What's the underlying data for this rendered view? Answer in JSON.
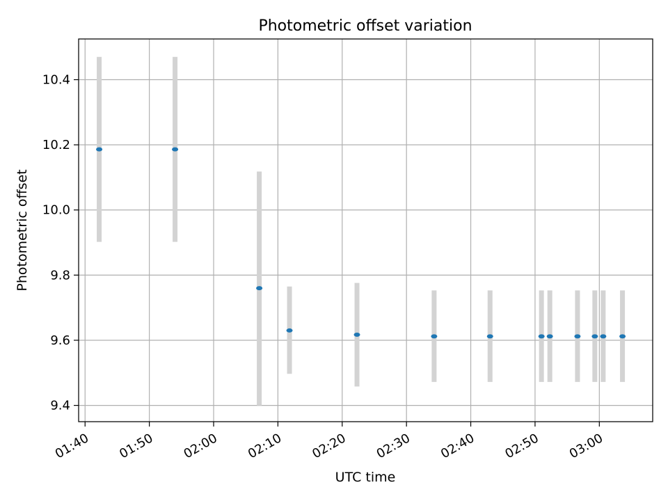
{
  "chart_data": {
    "type": "scatter",
    "title": "Photometric offset variation",
    "xlabel": "UTC time",
    "ylabel": "Photometric offset",
    "xlim": [
      99.0,
      188.3
    ],
    "ylim": [
      9.35,
      10.525
    ],
    "x_ticks": [
      {
        "value": 100,
        "label": "01:40"
      },
      {
        "value": 110,
        "label": "01:50"
      },
      {
        "value": 120,
        "label": "02:00"
      },
      {
        "value": 130,
        "label": "02:10"
      },
      {
        "value": 140,
        "label": "02:20"
      },
      {
        "value": 150,
        "label": "02:30"
      },
      {
        "value": 160,
        "label": "02:40"
      },
      {
        "value": 170,
        "label": "02:50"
      },
      {
        "value": 180,
        "label": "03:00"
      }
    ],
    "y_ticks": [
      {
        "value": 9.4,
        "label": "9.4"
      },
      {
        "value": 9.6,
        "label": "9.6"
      },
      {
        "value": 9.8,
        "label": "9.8"
      },
      {
        "value": 10.0,
        "label": "10.0"
      },
      {
        "value": 10.2,
        "label": "10.2"
      },
      {
        "value": 10.4,
        "label": "10.4"
      }
    ],
    "grid": true,
    "x_unit": "minutes after 00:00 UTC",
    "points": [
      {
        "x": 102.2,
        "y": 10.186,
        "low": 9.902,
        "high": 10.47
      },
      {
        "x": 114.0,
        "y": 10.186,
        "low": 9.902,
        "high": 10.47
      },
      {
        "x": 127.1,
        "y": 9.76,
        "low": 9.4,
        "high": 10.118
      },
      {
        "x": 131.8,
        "y": 9.63,
        "low": 9.497,
        "high": 9.765
      },
      {
        "x": 142.3,
        "y": 9.617,
        "low": 9.458,
        "high": 9.776
      },
      {
        "x": 154.3,
        "y": 9.612,
        "low": 9.472,
        "high": 9.753
      },
      {
        "x": 163.0,
        "y": 9.612,
        "low": 9.472,
        "high": 9.753
      },
      {
        "x": 171.0,
        "y": 9.612,
        "low": 9.472,
        "high": 9.753
      },
      {
        "x": 172.3,
        "y": 9.612,
        "low": 9.472,
        "high": 9.753
      },
      {
        "x": 176.6,
        "y": 9.612,
        "low": 9.472,
        "high": 9.753
      },
      {
        "x": 179.3,
        "y": 9.612,
        "low": 9.472,
        "high": 9.753
      },
      {
        "x": 180.6,
        "y": 9.612,
        "low": 9.472,
        "high": 9.753
      },
      {
        "x": 183.6,
        "y": 9.612,
        "low": 9.472,
        "high": 9.753
      }
    ],
    "colors": {
      "point": "#1f77b4",
      "errorbar": "#d3d3d3",
      "grid": "#b0b0b0",
      "axes": "#000000"
    }
  }
}
